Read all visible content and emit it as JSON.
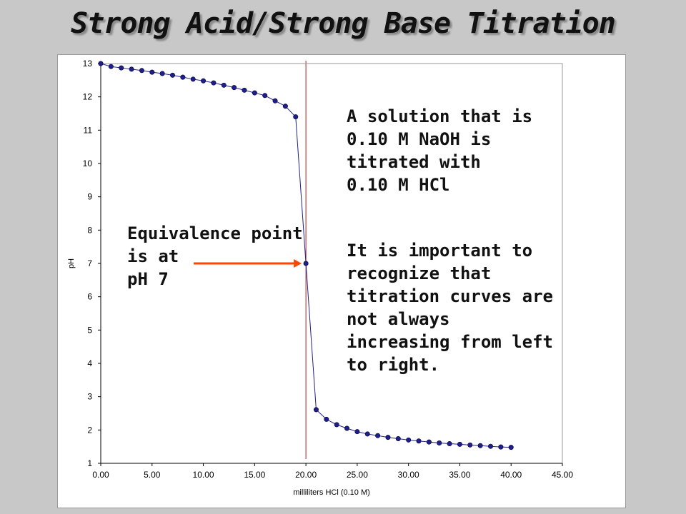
{
  "title": "Strong Acid/Strong Base Titration",
  "annotations": {
    "solution": "A solution that is\n0.10 M NaOH is\ntitrated with\n0.10 M HCl",
    "important": "It is important to\nrecognize that\ntitration curves are\nnot always\nincreasing from left\nto right.",
    "equivalence": "Equivalence point\nis at\npH 7"
  },
  "colors": {
    "curve": "#1f1f8a",
    "marker": "#1f1f8a",
    "equivalence_line": "#b22222",
    "arrow": "#ff4500"
  },
  "chart_data": {
    "type": "scatter",
    "title": "",
    "xlabel": "milliliters HCl (0.10 M)",
    "ylabel": "pH",
    "xlim": [
      0,
      45
    ],
    "ylim": [
      1,
      13
    ],
    "x_ticks": [
      "0.00",
      "5.00",
      "10.00",
      "15.00",
      "20.00",
      "25.00",
      "30.00",
      "35.00",
      "40.00",
      "45.00"
    ],
    "y_ticks": [
      "1",
      "2",
      "3",
      "4",
      "5",
      "6",
      "7",
      "8",
      "9",
      "10",
      "11",
      "12",
      "13"
    ],
    "equivalence_x": 20,
    "series": [
      {
        "x": [
          0,
          1,
          2,
          3,
          4,
          5,
          6,
          7,
          8,
          9,
          10,
          11,
          12,
          13,
          14,
          15,
          16,
          17,
          18,
          19,
          20,
          21,
          22,
          23,
          24,
          25,
          26,
          27,
          28,
          29,
          30,
          31,
          32,
          33,
          34,
          35,
          36,
          37,
          38,
          39,
          40
        ],
        "y": [
          13.0,
          12.91,
          12.87,
          12.83,
          12.79,
          12.74,
          12.7,
          12.65,
          12.59,
          12.53,
          12.48,
          12.42,
          12.35,
          12.28,
          12.2,
          12.12,
          12.04,
          11.88,
          11.72,
          11.4,
          7.0,
          2.61,
          2.32,
          2.16,
          2.05,
          1.95,
          1.88,
          1.83,
          1.78,
          1.74,
          1.7,
          1.67,
          1.64,
          1.61,
          1.59,
          1.57,
          1.55,
          1.53,
          1.51,
          1.49,
          1.48
        ]
      }
    ]
  }
}
